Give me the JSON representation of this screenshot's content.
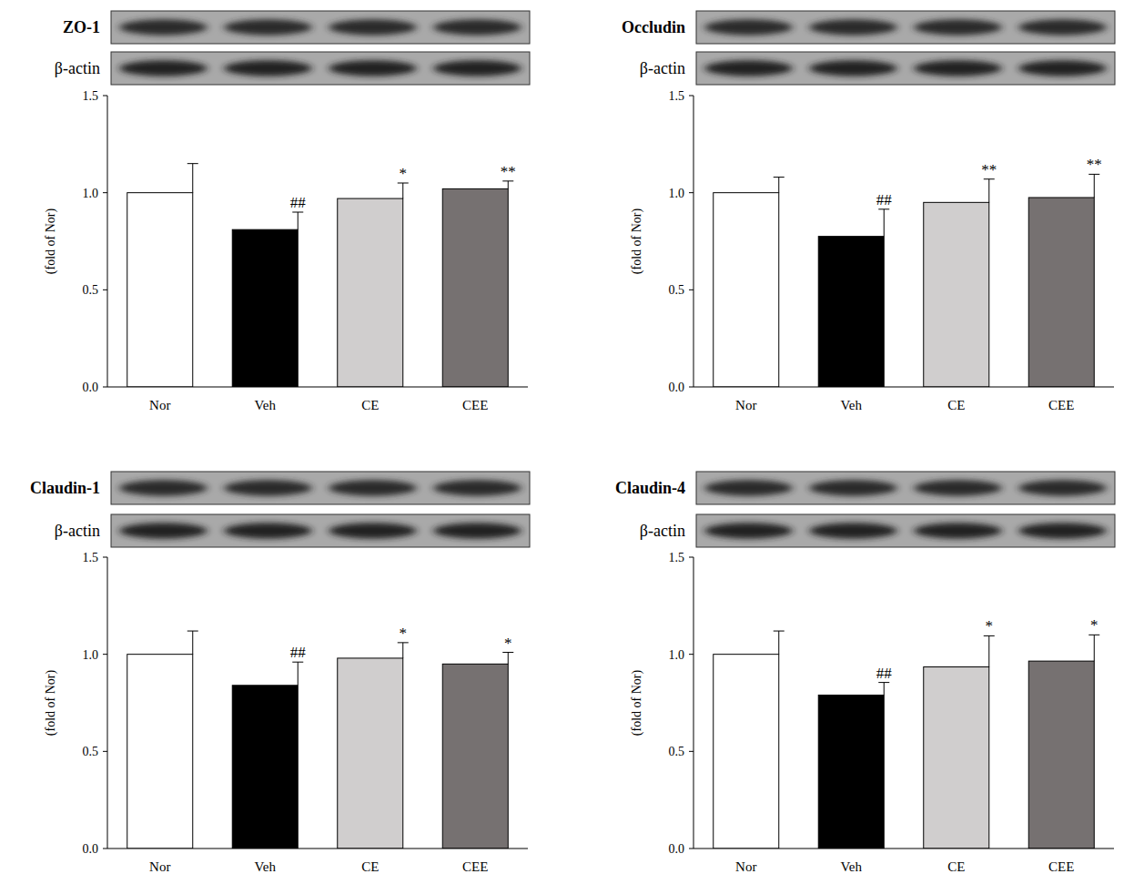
{
  "chart_data": [
    {
      "type": "bar",
      "title": "ZO-1",
      "reference": "β-actin",
      "y_label": "(fold of Nor)",
      "categories": [
        "Nor",
        "Veh",
        "CE",
        "CEE"
      ],
      "values": [
        1.0,
        0.81,
        0.97,
        1.02
      ],
      "errors": [
        0.15,
        0.09,
        0.08,
        0.04
      ],
      "annotations": [
        null,
        "##",
        "*",
        "**"
      ],
      "colors": [
        "#ffffff",
        "#000000",
        "#d0cece",
        "#767171"
      ],
      "ylim": [
        0,
        1.5
      ],
      "yticks": [
        {
          "value": 0,
          "label": "0.0"
        },
        {
          "value": 0.5,
          "label": "0.5"
        },
        {
          "value": 1,
          "label": "1.0"
        },
        {
          "value": 1.5,
          "label": "1.5"
        }
      ],
      "grid": false
    },
    {
      "type": "bar",
      "title": "Occludin",
      "reference": "β-actin",
      "y_label": "(fold of Nor)",
      "categories": [
        "Nor",
        "Veh",
        "CE",
        "CEE"
      ],
      "values": [
        1.0,
        0.775,
        0.95,
        0.975
      ],
      "errors": [
        0.08,
        0.14,
        0.12,
        0.12
      ],
      "annotations": [
        null,
        "##",
        "**",
        "**"
      ],
      "colors": [
        "#ffffff",
        "#000000",
        "#d0cece",
        "#767171"
      ],
      "ylim": [
        0,
        1.5
      ],
      "yticks": [
        {
          "value": 0,
          "label": "0.0"
        },
        {
          "value": 0.5,
          "label": "0.5"
        },
        {
          "value": 1,
          "label": "1.0"
        },
        {
          "value": 1.5,
          "label": "1.5"
        }
      ],
      "grid": false
    },
    {
      "type": "bar",
      "title": "Claudin-1",
      "reference": "β-actin",
      "y_label": "(fold of Nor)",
      "categories": [
        "Nor",
        "Veh",
        "CE",
        "CEE"
      ],
      "values": [
        1.0,
        0.84,
        0.98,
        0.95
      ],
      "errors": [
        0.12,
        0.12,
        0.08,
        0.06
      ],
      "annotations": [
        null,
        "##",
        "*",
        "*"
      ],
      "colors": [
        "#ffffff",
        "#000000",
        "#d0cece",
        "#767171"
      ],
      "ylim": [
        0,
        1.5
      ],
      "yticks": [
        {
          "value": 0,
          "label": "0.0"
        },
        {
          "value": 0.5,
          "label": "0.5"
        },
        {
          "value": 1,
          "label": "1.0"
        },
        {
          "value": 1.5,
          "label": "1.5"
        }
      ],
      "grid": false
    },
    {
      "type": "bar",
      "title": "Claudin-4",
      "reference": "β-actin",
      "y_label": "(fold of Nor)",
      "categories": [
        "Nor",
        "Veh",
        "CE",
        "CEE"
      ],
      "values": [
        1.0,
        0.79,
        0.935,
        0.965
      ],
      "errors": [
        0.12,
        0.065,
        0.16,
        0.135
      ],
      "annotations": [
        null,
        "##",
        "*",
        "*"
      ],
      "colors": [
        "#ffffff",
        "#000000",
        "#d0cece",
        "#767171"
      ],
      "ylim": [
        0,
        1.5
      ],
      "yticks": [
        {
          "value": 0,
          "label": "0.0"
        },
        {
          "value": 0.5,
          "label": "0.5"
        },
        {
          "value": 1,
          "label": "1.0"
        },
        {
          "value": 1.5,
          "label": "1.5"
        }
      ],
      "grid": false
    }
  ]
}
